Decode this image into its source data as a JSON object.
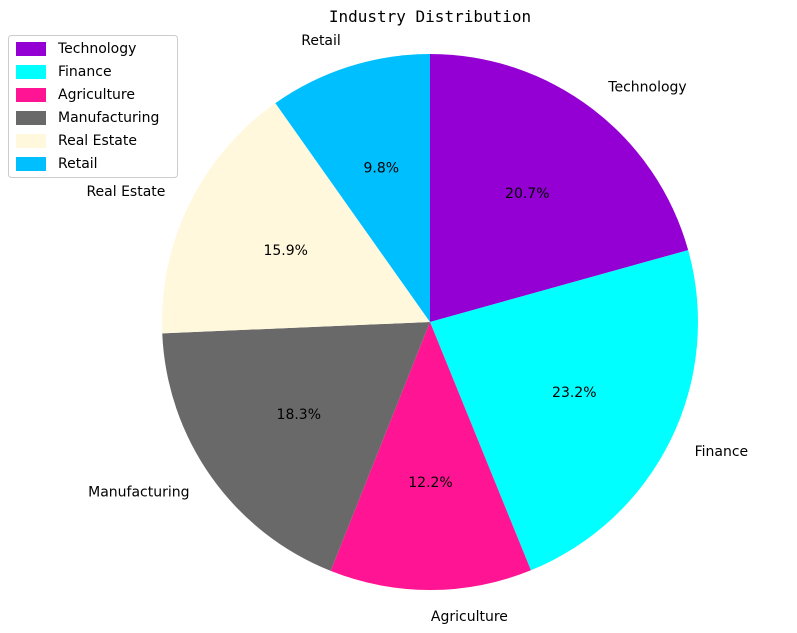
{
  "chart_data": {
    "type": "pie",
    "title": "Industry Distribution",
    "start_angle_deg": 90,
    "direction": "clockwise",
    "legend_position": "top-left",
    "slices": [
      {
        "label": "Technology",
        "value": 20.7,
        "pct_label": "20.7%",
        "color": "#9400d3"
      },
      {
        "label": "Finance",
        "value": 23.2,
        "pct_label": "23.2%",
        "color": "#00ffff"
      },
      {
        "label": "Agriculture",
        "value": 12.2,
        "pct_label": "12.2%",
        "color": "#ff1493"
      },
      {
        "label": "Manufacturing",
        "value": 18.3,
        "pct_label": "18.3%",
        "color": "#696969"
      },
      {
        "label": "Real Estate",
        "value": 15.9,
        "pct_label": "15.9%",
        "color": "#fff8dc"
      },
      {
        "label": "Retail",
        "value": 9.8,
        "pct_label": "9.8%",
        "color": "#00bfff"
      }
    ]
  }
}
